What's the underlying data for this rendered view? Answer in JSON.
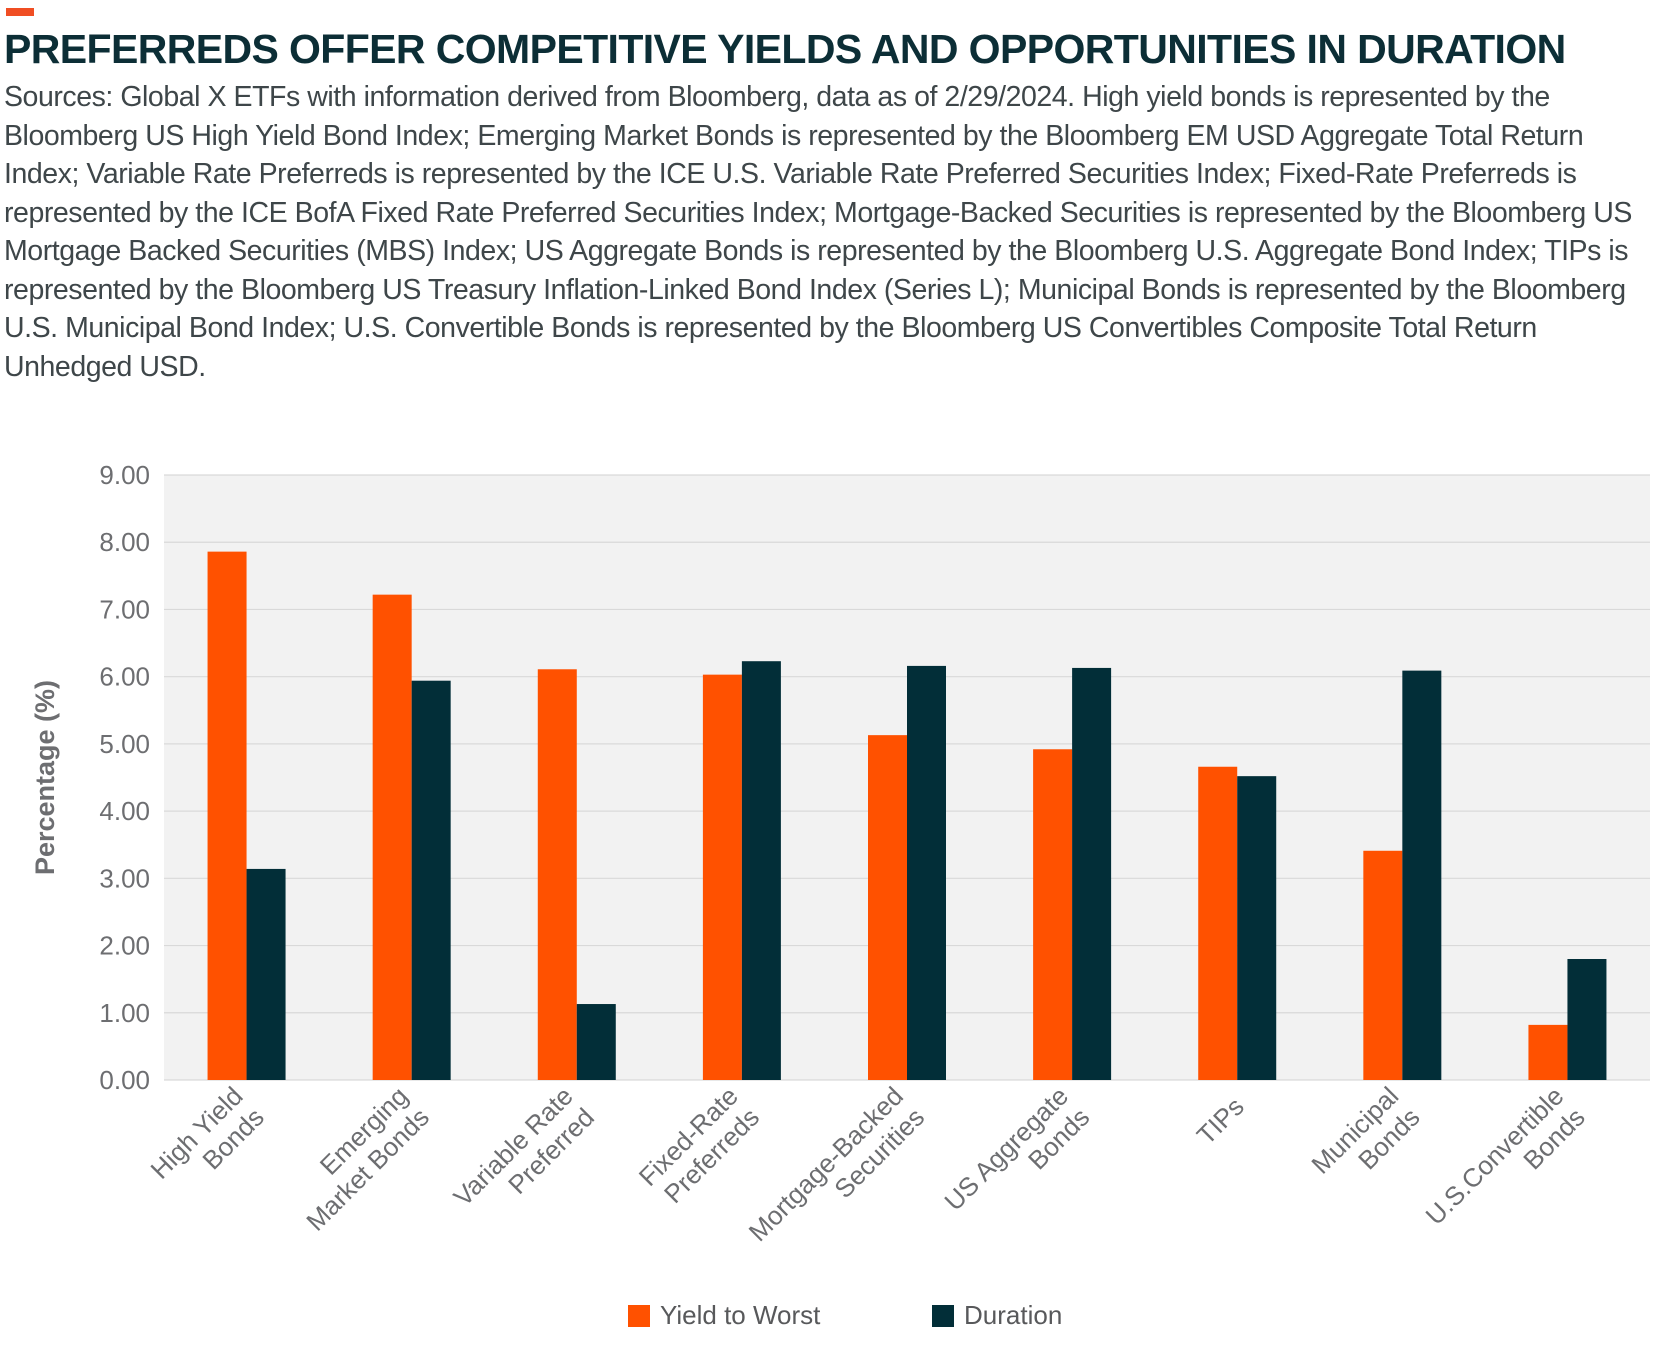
{
  "colors": {
    "accent": "#f04e23",
    "title": "#0c2e36",
    "yield": "#ff5100",
    "duration": "#022e38",
    "plot_bg": "#f2f2f2",
    "grid": "#d9d9d9",
    "axis_text": "#6d6e71"
  },
  "header": {
    "title": "PREFERREDS OFFER COMPETITIVE YIELDS AND OPPORTUNITIES IN DURATION",
    "sources": "Sources: Global X ETFs with information derived from Bloomberg, data as of 2/29/2024. High yield bonds is represented by the Bloomberg US High Yield Bond Index; Emerging Market Bonds is represented by the Bloomberg EM USD Aggregate Total Return Index; Variable Rate Preferreds is represented by the ICE U.S. Variable Rate Preferred Securities Index; Fixed-Rate Preferreds is represented by the ICE BofA Fixed Rate Preferred Securities Index; Mortgage-Backed Securities is represented by the Bloomberg US Mortgage Backed Securities (MBS) Index; US Aggregate Bonds is represented by the Bloomberg U.S. Aggregate Bond Index; TIPs is represented by the Bloomberg US Treasury Inflation-Linked Bond Index (Series L); Municipal Bonds is represented by the Bloomberg U.S. Municipal Bond Index; U.S. Convertible Bonds is represented by the Bloomberg US Convertibles Composite Total Return Unhedged USD."
  },
  "chart_data": {
    "type": "bar",
    "ylabel": "Percentage (%)",
    "xlabel": "",
    "ylim": [
      0,
      9
    ],
    "yticks": [
      "0.00",
      "1.00",
      "2.00",
      "3.00",
      "4.00",
      "5.00",
      "6.00",
      "7.00",
      "8.00",
      "9.00"
    ],
    "grid": true,
    "legend_position": "bottom",
    "categories": [
      [
        "High Yield",
        "Bonds"
      ],
      [
        "Emerging",
        "Market Bonds"
      ],
      [
        "Variable Rate",
        "Preferred"
      ],
      [
        "Fixed-Rate",
        "Preferreds"
      ],
      [
        "Mortgage-Backed",
        "Securities"
      ],
      [
        "US Aggregate",
        "Bonds"
      ],
      [
        "TIPs"
      ],
      [
        "Municipal",
        "Bonds"
      ],
      [
        "U.S.Convertible",
        "Bonds"
      ]
    ],
    "series": [
      {
        "name": "Yield to Worst",
        "color": "#ff5100",
        "values": [
          7.86,
          7.22,
          6.11,
          6.03,
          5.13,
          4.92,
          4.66,
          3.41,
          0.82
        ]
      },
      {
        "name": "Duration",
        "color": "#022e38",
        "values": [
          3.14,
          5.94,
          1.13,
          6.23,
          6.16,
          6.13,
          4.52,
          6.09,
          1.8
        ]
      }
    ]
  }
}
